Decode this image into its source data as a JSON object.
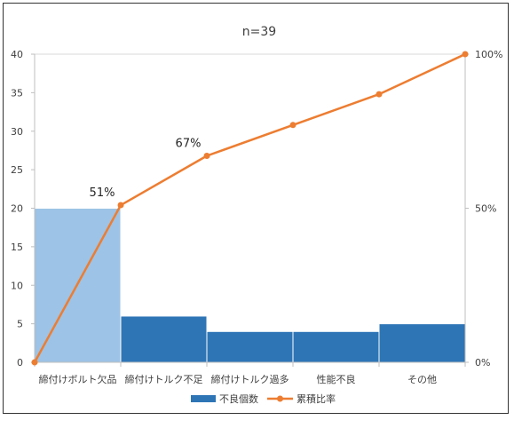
{
  "chart_data": {
    "type": "bar",
    "title": "n=39",
    "categories": [
      "締付けボルト欠品",
      "締付けトルク不足",
      "締付けトルク過多",
      "性能不良",
      "その他"
    ],
    "series": [
      {
        "name": "不良個数",
        "type": "bar",
        "values": [
          20,
          6,
          4,
          4,
          5
        ],
        "axis": "left",
        "colors": [
          "#9dc3e6",
          "#2e75b6",
          "#2e75b6",
          "#2e75b6",
          "#2e75b6"
        ]
      },
      {
        "name": "累積比率",
        "type": "line",
        "axis": "right",
        "x": [
          0,
          1,
          2,
          3,
          4,
          5
        ],
        "values": [
          0,
          51,
          67,
          77,
          87,
          100
        ],
        "color": "#ed7d31"
      }
    ],
    "data_labels": [
      {
        "series": "累積比率",
        "index": 1,
        "text": "51%"
      },
      {
        "series": "累積比率",
        "index": 2,
        "text": "67%"
      }
    ],
    "y_left": {
      "ylim": [
        0,
        40
      ],
      "ticks": [
        "0",
        "5",
        "10",
        "15",
        "20",
        "25",
        "30",
        "35",
        "40"
      ]
    },
    "y_right": {
      "ylim": [
        0,
        100
      ],
      "ticks": [
        "0%",
        "50%",
        "100%"
      ]
    },
    "gridlines": "top only",
    "legend_position": "bottom"
  }
}
